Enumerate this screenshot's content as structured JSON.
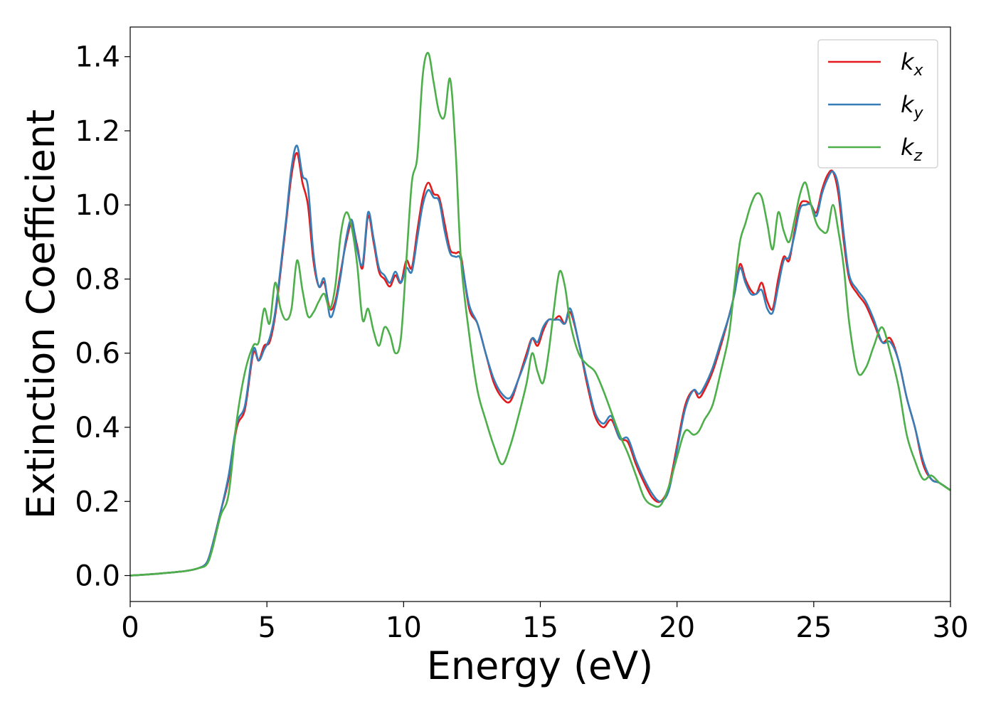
{
  "chart_data": {
    "type": "line",
    "xlabel": "Energy (eV)",
    "ylabel": "Extinction Coefficient",
    "xlim": [
      0,
      30
    ],
    "ylim": [
      -0.07,
      1.48
    ],
    "xticks": [
      0,
      5,
      10,
      15,
      20,
      25,
      30
    ],
    "xtick_labels": [
      "0",
      "5",
      "10",
      "15",
      "20",
      "25",
      "30"
    ],
    "yticks": [
      0.0,
      0.2,
      0.4,
      0.6,
      0.8,
      1.0,
      1.2,
      1.4
    ],
    "ytick_labels": [
      "0.0",
      "0.2",
      "0.4",
      "0.6",
      "0.8",
      "1.0",
      "1.2",
      "1.4"
    ],
    "grid": false,
    "legend_position": "top-right",
    "series": [
      {
        "name": "k_x",
        "label_main": "k",
        "label_sub": "x",
        "color": "#e41a1c",
        "x": [
          0,
          1,
          2,
          2.5,
          2.8,
          3.0,
          3.3,
          3.6,
          3.9,
          4.2,
          4.5,
          4.7,
          4.9,
          5.1,
          5.3,
          5.5,
          5.7,
          5.9,
          6.1,
          6.3,
          6.5,
          6.7,
          6.9,
          7.1,
          7.3,
          7.5,
          7.7,
          7.9,
          8.1,
          8.3,
          8.5,
          8.7,
          8.9,
          9.1,
          9.3,
          9.5,
          9.7,
          9.9,
          10.1,
          10.3,
          10.5,
          10.7,
          10.9,
          11.1,
          11.3,
          11.5,
          11.7,
          11.9,
          12.1,
          12.4,
          12.7,
          13.0,
          13.3,
          13.6,
          13.9,
          14.2,
          14.5,
          14.7,
          14.9,
          15.1,
          15.3,
          15.5,
          15.7,
          15.9,
          16.1,
          16.4,
          16.7,
          17.0,
          17.3,
          17.6,
          17.9,
          18.2,
          18.5,
          18.8,
          19.1,
          19.4,
          19.7,
          20.0,
          20.3,
          20.6,
          20.8,
          21.0,
          21.3,
          21.6,
          21.9,
          22.1,
          22.3,
          22.5,
          22.7,
          22.9,
          23.1,
          23.3,
          23.5,
          23.7,
          23.9,
          24.1,
          24.3,
          24.5,
          24.7,
          24.9,
          25.1,
          25.3,
          25.5,
          25.7,
          25.9,
          26.1,
          26.3,
          26.6,
          26.9,
          27.2,
          27.5,
          27.8,
          28.1,
          28.4,
          28.7,
          29.0,
          29.3,
          29.6,
          30.0
        ],
        "y": [
          0.0,
          0.005,
          0.012,
          0.02,
          0.035,
          0.08,
          0.17,
          0.26,
          0.4,
          0.45,
          0.6,
          0.58,
          0.62,
          0.63,
          0.7,
          0.82,
          0.95,
          1.08,
          1.14,
          1.06,
          1.0,
          0.85,
          0.78,
          0.79,
          0.72,
          0.74,
          0.82,
          0.9,
          0.95,
          0.89,
          0.83,
          0.97,
          0.9,
          0.82,
          0.8,
          0.78,
          0.81,
          0.79,
          0.85,
          0.83,
          0.93,
          1.02,
          1.06,
          1.03,
          1.02,
          0.95,
          0.88,
          0.87,
          0.86,
          0.72,
          0.68,
          0.6,
          0.52,
          0.48,
          0.47,
          0.53,
          0.6,
          0.64,
          0.62,
          0.66,
          0.69,
          0.69,
          0.7,
          0.68,
          0.71,
          0.63,
          0.52,
          0.43,
          0.4,
          0.42,
          0.37,
          0.36,
          0.3,
          0.25,
          0.21,
          0.2,
          0.24,
          0.35,
          0.46,
          0.5,
          0.48,
          0.5,
          0.55,
          0.62,
          0.7,
          0.76,
          0.84,
          0.8,
          0.77,
          0.76,
          0.79,
          0.74,
          0.72,
          0.8,
          0.86,
          0.85,
          0.93,
          1.0,
          1.01,
          1.0,
          0.98,
          1.04,
          1.08,
          1.09,
          1.03,
          0.9,
          0.8,
          0.76,
          0.73,
          0.68,
          0.63,
          0.64,
          0.58,
          0.48,
          0.4,
          0.3,
          0.26,
          0.25,
          0.23
        ]
      },
      {
        "name": "k_y",
        "label_main": "k",
        "label_sub": "y",
        "color": "#377eb8",
        "x": [
          0,
          1,
          2,
          2.5,
          2.8,
          3.0,
          3.3,
          3.6,
          3.9,
          4.2,
          4.5,
          4.7,
          4.9,
          5.1,
          5.3,
          5.5,
          5.7,
          5.9,
          6.1,
          6.3,
          6.5,
          6.7,
          6.9,
          7.1,
          7.3,
          7.5,
          7.7,
          7.9,
          8.1,
          8.3,
          8.5,
          8.7,
          8.9,
          9.1,
          9.3,
          9.5,
          9.7,
          9.9,
          10.1,
          10.3,
          10.5,
          10.7,
          10.9,
          11.1,
          11.3,
          11.5,
          11.7,
          11.9,
          12.1,
          12.4,
          12.7,
          13.0,
          13.3,
          13.6,
          13.9,
          14.2,
          14.5,
          14.7,
          14.9,
          15.1,
          15.3,
          15.5,
          15.7,
          15.9,
          16.1,
          16.4,
          16.7,
          17.0,
          17.3,
          17.6,
          17.9,
          18.2,
          18.5,
          18.8,
          19.1,
          19.4,
          19.7,
          20.0,
          20.3,
          20.6,
          20.8,
          21.0,
          21.3,
          21.6,
          21.9,
          22.1,
          22.3,
          22.5,
          22.7,
          22.9,
          23.1,
          23.3,
          23.5,
          23.7,
          23.9,
          24.1,
          24.3,
          24.5,
          24.7,
          24.9,
          25.1,
          25.3,
          25.5,
          25.7,
          25.9,
          26.1,
          26.3,
          26.6,
          26.9,
          27.2,
          27.5,
          27.8,
          28.1,
          28.4,
          28.7,
          29.0,
          29.3,
          29.6,
          30.0
        ],
        "y": [
          0.0,
          0.005,
          0.012,
          0.02,
          0.035,
          0.08,
          0.17,
          0.27,
          0.41,
          0.46,
          0.61,
          0.58,
          0.61,
          0.64,
          0.71,
          0.83,
          0.96,
          1.1,
          1.16,
          1.08,
          1.05,
          0.87,
          0.78,
          0.8,
          0.7,
          0.73,
          0.81,
          0.91,
          0.96,
          0.88,
          0.84,
          0.98,
          0.91,
          0.83,
          0.81,
          0.79,
          0.82,
          0.79,
          0.83,
          0.82,
          0.91,
          1.0,
          1.04,
          1.02,
          1.01,
          0.93,
          0.87,
          0.86,
          0.85,
          0.73,
          0.68,
          0.6,
          0.53,
          0.49,
          0.48,
          0.53,
          0.59,
          0.64,
          0.63,
          0.67,
          0.69,
          0.69,
          0.69,
          0.68,
          0.72,
          0.63,
          0.53,
          0.44,
          0.41,
          0.43,
          0.37,
          0.37,
          0.31,
          0.26,
          0.22,
          0.2,
          0.23,
          0.34,
          0.45,
          0.5,
          0.49,
          0.51,
          0.56,
          0.63,
          0.7,
          0.76,
          0.83,
          0.79,
          0.76,
          0.76,
          0.77,
          0.72,
          0.71,
          0.78,
          0.85,
          0.86,
          0.92,
          0.99,
          1.0,
          1.0,
          0.97,
          1.03,
          1.07,
          1.09,
          1.05,
          0.92,
          0.81,
          0.77,
          0.74,
          0.69,
          0.63,
          0.63,
          0.58,
          0.48,
          0.4,
          0.31,
          0.26,
          0.25,
          0.23
        ]
      },
      {
        "name": "k_z",
        "label_main": "k",
        "label_sub": "z",
        "color": "#4daf4a",
        "x": [
          0,
          1,
          2,
          2.5,
          2.8,
          3.0,
          3.3,
          3.6,
          3.9,
          4.2,
          4.5,
          4.7,
          4.9,
          5.1,
          5.3,
          5.5,
          5.7,
          5.9,
          6.1,
          6.3,
          6.5,
          6.7,
          6.9,
          7.1,
          7.3,
          7.5,
          7.7,
          7.9,
          8.1,
          8.3,
          8.5,
          8.7,
          8.9,
          9.1,
          9.3,
          9.5,
          9.7,
          9.9,
          10.1,
          10.3,
          10.5,
          10.7,
          10.9,
          11.1,
          11.3,
          11.5,
          11.7,
          11.9,
          12.1,
          12.4,
          12.7,
          13.0,
          13.3,
          13.6,
          13.9,
          14.2,
          14.5,
          14.7,
          14.9,
          15.1,
          15.3,
          15.5,
          15.7,
          15.9,
          16.1,
          16.4,
          16.7,
          17.0,
          17.3,
          17.6,
          17.9,
          18.2,
          18.5,
          18.8,
          19.1,
          19.4,
          19.7,
          20.0,
          20.3,
          20.6,
          20.8,
          21.0,
          21.3,
          21.6,
          21.9,
          22.1,
          22.3,
          22.5,
          22.7,
          22.9,
          23.1,
          23.3,
          23.5,
          23.7,
          23.9,
          24.1,
          24.3,
          24.5,
          24.7,
          24.9,
          25.1,
          25.3,
          25.5,
          25.7,
          25.9,
          26.1,
          26.3,
          26.6,
          26.9,
          27.2,
          27.5,
          27.8,
          28.1,
          28.4,
          28.7,
          29.0,
          29.3,
          29.6,
          30.0
        ],
        "y": [
          0.0,
          0.005,
          0.012,
          0.02,
          0.03,
          0.07,
          0.16,
          0.22,
          0.42,
          0.55,
          0.62,
          0.63,
          0.72,
          0.68,
          0.79,
          0.72,
          0.69,
          0.72,
          0.85,
          0.77,
          0.7,
          0.71,
          0.74,
          0.76,
          0.72,
          0.78,
          0.92,
          0.98,
          0.94,
          0.84,
          0.69,
          0.72,
          0.66,
          0.62,
          0.67,
          0.65,
          0.6,
          0.64,
          0.85,
          1.06,
          1.13,
          1.35,
          1.41,
          1.33,
          1.25,
          1.24,
          1.34,
          1.15,
          0.85,
          0.65,
          0.5,
          0.42,
          0.35,
          0.3,
          0.35,
          0.43,
          0.52,
          0.6,
          0.55,
          0.52,
          0.6,
          0.72,
          0.82,
          0.78,
          0.68,
          0.6,
          0.57,
          0.55,
          0.5,
          0.44,
          0.38,
          0.33,
          0.27,
          0.21,
          0.19,
          0.19,
          0.24,
          0.32,
          0.39,
          0.38,
          0.39,
          0.42,
          0.46,
          0.55,
          0.65,
          0.78,
          0.9,
          0.95,
          1.0,
          1.03,
          1.02,
          0.95,
          0.88,
          0.98,
          0.93,
          0.9,
          0.96,
          1.03,
          1.06,
          1.0,
          0.95,
          0.93,
          0.93,
          1.0,
          0.93,
          0.83,
          0.68,
          0.55,
          0.56,
          0.62,
          0.67,
          0.6,
          0.51,
          0.38,
          0.31,
          0.26,
          0.27,
          0.25,
          0.23
        ]
      }
    ]
  }
}
